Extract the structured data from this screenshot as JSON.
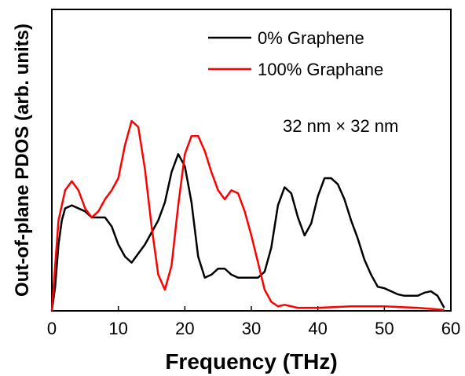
{
  "chart_data": {
    "type": "line",
    "title": "",
    "xlabel": "Frequency (THz)",
    "ylabel": "Out-of-plane PDOS (arb. units)",
    "xlim": [
      0,
      60
    ],
    "ylim": [
      0,
      1
    ],
    "xticks": [
      0,
      10,
      20,
      30,
      40,
      50,
      60
    ],
    "grid": false,
    "legend_position": "top-right",
    "annotation": "32 nm × 32 nm",
    "series": [
      {
        "name": "0% Graphene",
        "color": "#000000",
        "points": [
          [
            0,
            0
          ],
          [
            0.5,
            0.08
          ],
          [
            1,
            0.22
          ],
          [
            1.5,
            0.3
          ],
          [
            2,
            0.34
          ],
          [
            3,
            0.35
          ],
          [
            4,
            0.34
          ],
          [
            5,
            0.33
          ],
          [
            6,
            0.31
          ],
          [
            7,
            0.31
          ],
          [
            8,
            0.31
          ],
          [
            9,
            0.28
          ],
          [
            10,
            0.22
          ],
          [
            11,
            0.18
          ],
          [
            12,
            0.16
          ],
          [
            13,
            0.19
          ],
          [
            14,
            0.22
          ],
          [
            15,
            0.26
          ],
          [
            16,
            0.3
          ],
          [
            17,
            0.36
          ],
          [
            18,
            0.46
          ],
          [
            19,
            0.52
          ],
          [
            20,
            0.48
          ],
          [
            21,
            0.36
          ],
          [
            22,
            0.18
          ],
          [
            23,
            0.11
          ],
          [
            24,
            0.12
          ],
          [
            25,
            0.14
          ],
          [
            26,
            0.14
          ],
          [
            27,
            0.12
          ],
          [
            28,
            0.11
          ],
          [
            29,
            0.11
          ],
          [
            30,
            0.11
          ],
          [
            31,
            0.11
          ],
          [
            32,
            0.13
          ],
          [
            33,
            0.21
          ],
          [
            34,
            0.35
          ],
          [
            35,
            0.41
          ],
          [
            36,
            0.39
          ],
          [
            37,
            0.31
          ],
          [
            38,
            0.25
          ],
          [
            39,
            0.29
          ],
          [
            40,
            0.38
          ],
          [
            41,
            0.44
          ],
          [
            42,
            0.44
          ],
          [
            43,
            0.42
          ],
          [
            44,
            0.37
          ],
          [
            45,
            0.3
          ],
          [
            46,
            0.24
          ],
          [
            47,
            0.17
          ],
          [
            48,
            0.12
          ],
          [
            49,
            0.08
          ],
          [
            50,
            0.075
          ],
          [
            51,
            0.065
          ],
          [
            52,
            0.055
          ],
          [
            53,
            0.05
          ],
          [
            54,
            0.05
          ],
          [
            55,
            0.05
          ],
          [
            56,
            0.06
          ],
          [
            57,
            0.065
          ],
          [
            58,
            0.05
          ],
          [
            59,
            0.01
          ]
        ]
      },
      {
        "name": "100% Graphane",
        "color": "#ff0000",
        "points": [
          [
            0,
            0
          ],
          [
            0.5,
            0.15
          ],
          [
            1,
            0.3
          ],
          [
            2,
            0.4
          ],
          [
            3,
            0.43
          ],
          [
            4,
            0.4
          ],
          [
            5,
            0.34
          ],
          [
            6,
            0.31
          ],
          [
            7,
            0.33
          ],
          [
            8,
            0.37
          ],
          [
            9,
            0.4
          ],
          [
            10,
            0.44
          ],
          [
            11,
            0.55
          ],
          [
            12,
            0.63
          ],
          [
            13,
            0.61
          ],
          [
            14,
            0.47
          ],
          [
            15,
            0.28
          ],
          [
            16,
            0.12
          ],
          [
            17,
            0.07
          ],
          [
            18,
            0.15
          ],
          [
            19,
            0.35
          ],
          [
            20,
            0.52
          ],
          [
            21,
            0.58
          ],
          [
            22,
            0.58
          ],
          [
            23,
            0.53
          ],
          [
            24,
            0.46
          ],
          [
            25,
            0.4
          ],
          [
            26,
            0.37
          ],
          [
            27,
            0.4
          ],
          [
            28,
            0.39
          ],
          [
            29,
            0.33
          ],
          [
            30,
            0.25
          ],
          [
            31,
            0.16
          ],
          [
            32,
            0.07
          ],
          [
            33,
            0.03
          ],
          [
            34,
            0.015
          ],
          [
            35,
            0.02
          ],
          [
            36,
            0.015
          ],
          [
            37,
            0.01
          ],
          [
            40,
            0.01
          ],
          [
            45,
            0.015
          ],
          [
            50,
            0.015
          ],
          [
            55,
            0.01
          ],
          [
            58,
            0.005
          ],
          [
            59,
            0.003
          ]
        ]
      }
    ]
  }
}
